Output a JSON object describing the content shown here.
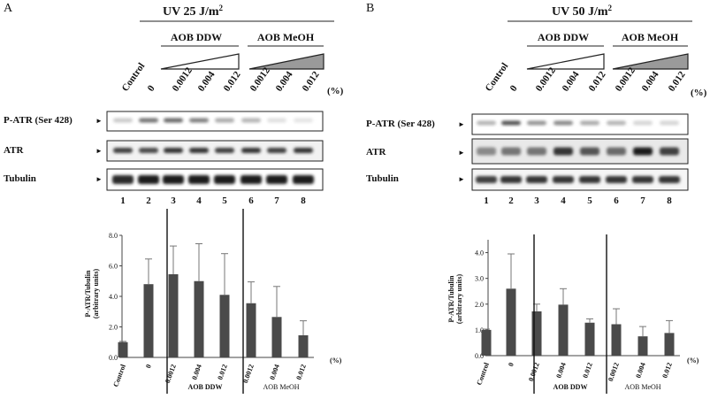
{
  "panels": [
    {
      "letter": "A",
      "condition": "UV 25 J/m",
      "condition_sup": "2",
      "groups": [
        {
          "label": "AOB DDW",
          "color": "#ffffff"
        },
        {
          "label": "AOB MeOH",
          "color": "#9a9a9a"
        }
      ],
      "lane_labels": [
        "Control",
        "0",
        "0.0012",
        "0.004",
        "0.012",
        "0.0012",
        "0.004",
        "0.012"
      ],
      "percent_label": "(%)",
      "blots": [
        "P-ATR (Ser 428)",
        "ATR",
        "Tubulin"
      ],
      "lane_numbers": [
        "1",
        "2",
        "3",
        "4",
        "5",
        "6",
        "7",
        "8"
      ],
      "chart_data": {
        "type": "bar",
        "categories": [
          "Control",
          "0",
          "0.0012",
          "0.004",
          "0.012",
          "0.0012",
          "0.004",
          "0.012"
        ],
        "values": [
          1.0,
          4.8,
          5.45,
          5.0,
          4.1,
          3.55,
          2.65,
          1.45
        ],
        "errors": [
          0.05,
          1.65,
          1.85,
          2.45,
          2.7,
          1.4,
          2.0,
          0.95
        ],
        "ylabel": "P-ATR/Tubulin (arbitrary units)",
        "ylim": [
          0,
          8
        ],
        "yticks": [
          "0.0",
          "2.0",
          "4.0",
          "6.0",
          "8.0"
        ],
        "unit_label": "(%)",
        "group_labels": [
          "AOB DDW",
          "AOB MeOH"
        ]
      }
    },
    {
      "letter": "B",
      "condition": "UV 50 J/m",
      "condition_sup": "2",
      "groups": [
        {
          "label": "AOB DDW",
          "color": "#ffffff"
        },
        {
          "label": "AOB MeOH",
          "color": "#9a9a9a"
        }
      ],
      "lane_labels": [
        "Control",
        "0",
        "0.0012",
        "0.004",
        "0.012",
        "0.0012",
        "0.004",
        "0.012"
      ],
      "percent_label": "(%)",
      "blots": [
        "P-ATR (Ser 428)",
        "ATR",
        "Tubulin"
      ],
      "lane_numbers": [
        "1",
        "2",
        "3",
        "4",
        "5",
        "6",
        "7",
        "8"
      ],
      "chart_data": {
        "type": "bar",
        "categories": [
          "Control",
          "0",
          "0.0012",
          "0.004",
          "0.012",
          "0.0012",
          "0.004",
          "0.012"
        ],
        "values": [
          1.0,
          2.6,
          1.72,
          1.98,
          1.28,
          1.22,
          0.75,
          0.88
        ],
        "errors": [
          0.03,
          1.35,
          0.28,
          0.62,
          0.15,
          0.6,
          0.38,
          0.48
        ],
        "ylabel": "P-ATR/Tubulin (arbitrary units)",
        "ylim": [
          0,
          4.5
        ],
        "yticks": [
          "0.0",
          "1.0",
          "2.0",
          "3.0",
          "4.0"
        ],
        "unit_label": "(%)",
        "group_labels": [
          "AOB DDW",
          "AOB MeOH"
        ]
      }
    }
  ]
}
